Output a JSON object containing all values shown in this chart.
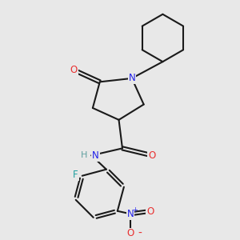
{
  "background_color": "#e8e8e8",
  "bond_color": "#1a1a1a",
  "atom_colors": {
    "O": "#e83030",
    "N": "#2020e8",
    "F": "#20a0a0",
    "H": "#60a0a0",
    "Nplus": "#2020e8"
  },
  "figsize": [
    3.0,
    3.0
  ],
  "dpi": 100
}
